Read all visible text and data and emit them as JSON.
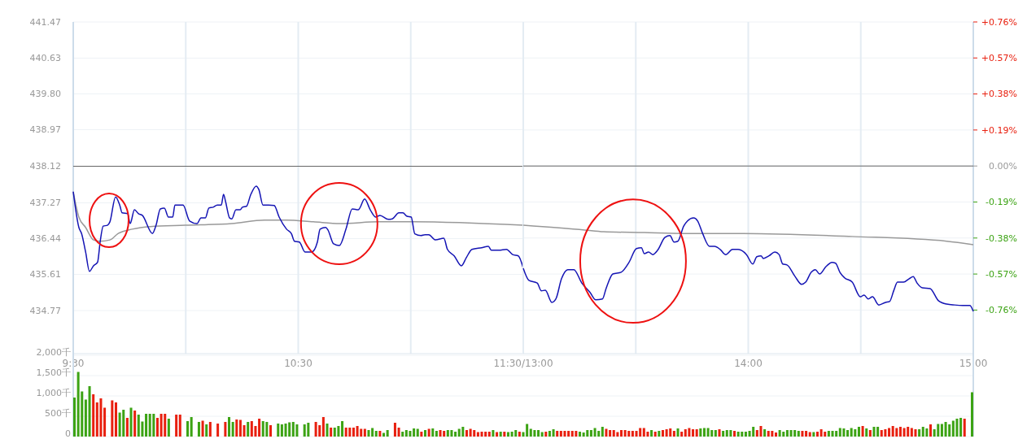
{
  "chart_data": [
    {
      "type": "line",
      "xlim": [
        9.5,
        11.5
      ],
      "xticks": [
        {
          "value": 9.5,
          "label": "9:30"
        },
        {
          "value": 10,
          "label": null
        },
        {
          "value": 10.5,
          "label": "10:30"
        },
        {
          "value": 11,
          "label": null
        },
        {
          "value": 11.5,
          "label": "11:30/13:00"
        }
      ],
      "ylim": [
        433.77,
        441.47
      ],
      "yticks": [
        {
          "value": 434.77,
          "label": "434.77"
        },
        {
          "value": 435.61,
          "label": "435.61"
        },
        {
          "value": 436.44,
          "label": "436.44"
        },
        {
          "value": 437.27,
          "label": "437.27"
        },
        {
          "value": 438.12,
          "label": "438.12"
        },
        {
          "value": 438.97,
          "label": "438.97"
        },
        {
          "value": 439.8,
          "label": "439.80"
        },
        {
          "value": 440.63,
          "label": "440.63"
        },
        {
          "value": 441.47,
          "label": "441.47"
        }
      ],
      "grid": true,
      "ref_lines": [
        {
          "axis": "y",
          "value": 438.12,
          "color": "#666666"
        }
      ],
      "series": [
        {
          "color": "#999999",
          "x": [
            9.5,
            9.525,
            9.555,
            9.59,
            9.617,
            9.663,
            9.7,
            9.762,
            9.843,
            9.998,
            10.205,
            10.35,
            10.448,
            10.567,
            10.687,
            10.857,
            11.005,
            11.5
          ],
          "values": [
            437.53,
            436.94,
            436.7,
            436.41,
            436.38,
            436.41,
            436.56,
            436.66,
            436.72,
            436.75,
            436.79,
            436.87,
            436.87,
            436.83,
            436.79,
            436.83,
            436.83,
            436.75
          ]
        },
        {
          "color": "#1414b4",
          "x": [
            9.5,
            9.525,
            9.537,
            9.555,
            9.572,
            9.59,
            9.608,
            9.62,
            9.633,
            9.652,
            9.663,
            9.688,
            9.707,
            9.717,
            9.742,
            9.753,
            9.772,
            9.79,
            9.807,
            9.852,
            9.868,
            9.887,
            9.905,
            9.923,
            9.942,
            9.952,
            9.988,
            10.017,
            10.05,
            10.068,
            10.087,
            10.103,
            10.122,
            10.14,
            10.158,
            10.168,
            10.177,
            10.195,
            10.205,
            10.223,
            10.242,
            10.252,
            10.27,
            10.288,
            10.313,
            10.325,
            10.343,
            10.368,
            10.393,
            10.415,
            10.448,
            10.47,
            10.483,
            10.505,
            10.53,
            10.56,
            10.585,
            10.597,
            10.622,
            10.632,
            10.657,
            10.683,
            10.712,
            10.74,
            10.767,
            10.795,
            10.82,
            10.845,
            10.863,
            10.9,
            10.918,
            10.947,
            10.965,
            10.983,
            11.002,
            11.018,
            11.045,
            11.063,
            11.08,
            11.11,
            11.147,
            11.163,
            11.193,
            11.225,
            11.247,
            11.272,
            11.315,
            11.345,
            11.358,
            11.392,
            11.425,
            11.453,
            11.478,
            11.5
          ],
          "values": [
            437.53,
            436.7,
            436.56,
            436.13,
            435.68,
            435.81,
            435.89,
            436.38,
            436.73,
            436.75,
            436.83,
            437.41,
            437.21,
            437.04,
            437.02,
            436.79,
            437.11,
            437.02,
            436.98,
            436.56,
            436.75,
            437.13,
            437.15,
            436.94,
            436.94,
            437.22,
            437.22,
            436.85,
            436.79,
            436.92,
            436.92,
            437.15,
            437.17,
            437.22,
            437.22,
            437.47,
            437.3,
            436.92,
            436.9,
            437.11,
            437.11,
            437.17,
            437.19,
            437.45,
            437.66,
            437.58,
            437.22,
            437.22,
            437.21,
            436.94,
            436.66,
            436.55,
            436.38,
            436.36,
            436.13,
            436.13,
            436.36,
            436.66,
            436.7,
            436.64,
            436.32,
            436.28,
            436.66,
            437.13,
            437.11,
            437.36,
            437.11,
            436.94,
            436.98,
            436.89,
            436.9,
            437.04,
            437.04,
            436.96,
            436.94,
            436.55,
            436.51,
            436.53,
            436.53,
            436.41,
            436.45,
            436.19,
            436.04,
            435.81,
            436.0,
            436.19,
            436.23,
            436.26,
            436.17,
            436.17,
            436.19,
            436.07,
            436.04,
            435.75
          ]
        }
      ]
    },
    {
      "type": "line",
      "tick_labels": "x",
      "xlim": [
        13,
        15
      ],
      "xticks": [
        {
          "value": 13,
          "label": null
        },
        {
          "value": 13.5,
          "label": null
        },
        {
          "value": 14,
          "label": "14:00"
        },
        {
          "value": 14.5,
          "label": null
        },
        {
          "value": 15,
          "label": "15:00"
        }
      ],
      "ylim": [
        433.77,
        441.47
      ],
      "y2lim": [
        -0.99,
        0.76
      ],
      "y2ticks": [
        {
          "value": -0.76,
          "label": "-0.76%"
        },
        {
          "value": -0.57,
          "label": "-0.57%"
        },
        {
          "value": -0.38,
          "label": "-0.38%"
        },
        {
          "value": -0.19,
          "label": "-0.19%"
        },
        {
          "value": 0,
          "label": "0.00%"
        },
        {
          "value": 0.19,
          "label": "+0.19%"
        },
        {
          "value": 0.38,
          "label": "+0.38%"
        },
        {
          "value": 0.57,
          "label": "+0.57%"
        },
        {
          "value": 0.76,
          "label": "+0.76%"
        }
      ],
      "grid": true,
      "ref_lines": [
        {
          "axis": "y2",
          "value": 0,
          "color": "#666666"
        }
      ],
      "series": [
        {
          "color": "#999999",
          "x": [
            13,
            13.273,
            13.357,
            13.538,
            13.708,
            13.977,
            14.462,
            14.882,
            15
          ],
          "values": [
            436.75,
            436.64,
            436.6,
            436.58,
            436.56,
            436.56,
            436.49,
            436.38,
            436.3
          ]
        },
        {
          "color": "#1414b4",
          "x": [
            13,
            13.025,
            13.062,
            13.08,
            13.098,
            13.127,
            13.145,
            13.17,
            13.198,
            13.225,
            13.26,
            13.297,
            13.322,
            13.352,
            13.368,
            13.398,
            13.435,
            13.47,
            13.503,
            13.525,
            13.538,
            13.557,
            13.575,
            13.597,
            13.63,
            13.652,
            13.67,
            13.687,
            13.713,
            13.73,
            13.757,
            13.775,
            13.797,
            13.828,
            13.85,
            13.875,
            13.9,
            13.93,
            13.955,
            13.992,
            14.02,
            14.038,
            14.057,
            14.067,
            14.092,
            14.118,
            14.137,
            14.153,
            14.172,
            14.208,
            14.237,
            14.255,
            14.28,
            14.298,
            14.317,
            14.345,
            14.372,
            14.388,
            14.407,
            14.428,
            14.462,
            14.498,
            14.515,
            14.533,
            14.552,
            14.58,
            14.61,
            14.628,
            14.647,
            14.663,
            14.69,
            14.715,
            14.733,
            14.75,
            14.773,
            14.808,
            14.845,
            14.882,
            14.917,
            14.953,
            14.985,
            15
          ],
          "values": [
            435.75,
            435.47,
            435.41,
            435.23,
            435.24,
            434.96,
            435.04,
            435.51,
            435.72,
            435.72,
            435.41,
            435.19,
            435.02,
            435.04,
            435.28,
            435.62,
            435.66,
            435.89,
            436.21,
            436.23,
            436.09,
            436.13,
            436.07,
            436.17,
            436.47,
            436.51,
            436.36,
            436.38,
            436.73,
            436.85,
            436.92,
            436.85,
            436.56,
            436.26,
            436.26,
            436.19,
            436.07,
            436.19,
            436.19,
            436.07,
            435.85,
            436.02,
            436.04,
            435.98,
            436.04,
            436.13,
            436.07,
            435.85,
            435.83,
            435.56,
            435.38,
            435.43,
            435.66,
            435.72,
            435.62,
            435.79,
            435.89,
            435.87,
            435.66,
            435.53,
            435.43,
            435.09,
            435.13,
            435.04,
            435.09,
            434.9,
            434.96,
            434.98,
            435.24,
            435.43,
            435.43,
            435.51,
            435.56,
            435.41,
            435.3,
            435.28,
            435.0,
            434.92,
            434.9,
            434.89,
            434.89,
            434.75
          ]
        }
      ]
    },
    {
      "type": "bar",
      "tick_labels": "y",
      "grid": "y",
      "ylim": [
        0,
        2000
      ],
      "yticks": [
        0,
        {
          "value": 500,
          "label": "500千"
        },
        {
          "value": 1000,
          "label": "1,000千"
        },
        {
          "value": 1500,
          "label": "1,500千"
        },
        {
          "value": 2000,
          "label": "2,000千"
        }
      ],
      "categories": [
        null,
        null,
        null,
        null,
        null,
        null,
        null,
        null,
        null,
        null,
        null,
        null,
        null,
        null,
        null,
        null,
        null,
        null,
        null,
        null,
        null,
        null,
        null,
        null,
        null,
        null,
        null,
        null,
        null,
        null,
        null,
        null,
        null,
        null,
        null,
        null,
        null,
        null,
        null,
        null,
        null,
        null,
        null,
        null,
        null,
        null,
        null,
        null,
        null,
        null,
        null,
        null,
        null,
        null,
        null,
        null,
        null,
        null,
        null,
        null,
        null,
        null,
        null,
        null,
        null,
        null,
        null,
        null,
        null,
        null,
        null,
        null,
        null,
        null,
        null,
        null,
        null,
        null,
        null,
        null,
        null,
        null,
        null,
        null,
        null,
        null,
        null,
        null,
        null,
        null,
        null,
        null,
        null,
        null,
        null,
        null,
        null,
        null,
        null,
        null,
        null,
        null,
        null,
        null,
        null,
        null,
        null,
        null,
        null,
        null,
        null,
        null,
        null,
        null,
        null,
        null,
        null,
        null,
        null,
        null,
        null,
        null,
        null,
        null,
        null,
        null,
        null,
        null,
        null,
        null,
        null,
        null,
        null,
        null,
        null,
        null,
        null,
        null,
        null,
        null,
        null,
        null,
        null,
        null,
        null,
        null,
        null,
        null,
        null,
        null,
        null,
        null,
        null,
        null,
        null,
        null,
        null,
        null,
        null,
        null,
        null,
        null,
        null,
        null,
        null,
        null,
        null,
        null,
        null,
        null,
        null,
        null,
        null,
        null,
        null,
        null,
        null,
        null,
        null,
        null,
        null,
        null,
        null,
        null,
        null,
        null,
        null,
        null,
        null,
        null,
        null,
        null,
        null,
        null,
        null,
        null,
        null,
        null,
        null,
        null,
        null,
        null,
        null,
        null,
        null,
        null,
        null,
        null,
        null,
        null,
        null,
        null,
        null,
        null,
        null,
        null,
        null,
        null,
        null,
        null,
        null,
        null,
        null,
        null,
        null,
        null,
        null,
        null,
        null,
        null,
        null,
        null,
        null,
        null,
        null,
        null,
        null,
        null,
        null
      ],
      "values": [
        960,
        1590,
        1110,
        910,
        1240,
        1040,
        840,
        940,
        710,
        null,
        890,
        840,
        590,
        660,
        460,
        710,
        640,
        540,
        370,
        560,
        560,
        560,
        460,
        560,
        560,
        440,
        null,
        540,
        540,
        null,
        380,
        480,
        null,
        360,
        390,
        300,
        360,
        null,
        320,
        null,
        360,
        480,
        360,
        420,
        410,
        280,
        360,
        380,
        260,
        440,
        380,
        360,
        280,
        null,
        320,
        300,
        320,
        350,
        360,
        300,
        null,
        300,
        340,
        null,
        360,
        280,
        480,
        320,
        220,
        220,
        260,
        380,
        220,
        220,
        220,
        260,
        190,
        190,
        160,
        210,
        140,
        140,
        90,
        160,
        null,
        340,
        220,
        120,
        160,
        140,
        200,
        190,
        120,
        160,
        190,
        200,
        140,
        160,
        140,
        160,
        160,
        120,
        190,
        240,
        160,
        190,
        160,
        110,
        120,
        120,
        120,
        160,
        110,
        120,
        120,
        110,
        120,
        160,
        120,
        110,
        310,
        190,
        160,
        160,
        110,
        120,
        140,
        180,
        140,
        140,
        140,
        140,
        140,
        140,
        120,
        100,
        160,
        160,
        210,
        140,
        240,
        190,
        160,
        160,
        110,
        160,
        160,
        140,
        140,
        140,
        210,
        210,
        120,
        160,
        120,
        140,
        160,
        180,
        200,
        140,
        200,
        120,
        180,
        210,
        180,
        180,
        200,
        210,
        210,
        160,
        160,
        180,
        140,
        160,
        160,
        140,
        120,
        120,
        120,
        140,
        240,
        160,
        260,
        180,
        140,
        140,
        100,
        160,
        120,
        160,
        160,
        160,
        140,
        140,
        140,
        110,
        110,
        120,
        180,
        120,
        140,
        140,
        140,
        210,
        200,
        160,
        210,
        180,
        240,
        260,
        200,
        160,
        240,
        240,
        160,
        180,
        210,
        260,
        210,
        240,
        210,
        240,
        210,
        180,
        180,
        240,
        200,
        300,
        180,
        310,
        310,
        360,
        300,
        390,
        440,
        460,
        440,
        null,
        1090
      ],
      "colors": [
        "#3ca314",
        "#3ca314",
        "#3ca314",
        "#3ca314",
        "#3ca314",
        "#e8200f",
        "#e8200f",
        "#e8200f",
        "#e8200f",
        null,
        "#e8200f",
        "#e8200f",
        "#3ca314",
        "#3ca314",
        "#e8200f",
        "#3ca314",
        "#e8200f",
        "#3ca314",
        "#3ca314",
        "#3ca314",
        "#3ca314",
        "#3ca314",
        "#e8200f",
        "#e8200f",
        "#e8200f",
        "#3ca314",
        null,
        "#e8200f",
        "#e8200f",
        null,
        "#3ca314",
        "#3ca314",
        null,
        "#3ca314",
        "#e8200f",
        "#3ca314",
        "#e8200f",
        null,
        "#e8200f",
        null,
        "#e8200f",
        "#3ca314",
        "#3ca314",
        "#e8200f",
        "#e8200f",
        "#e8200f",
        "#3ca314",
        "#e8200f",
        "#e8200f",
        "#e8200f",
        "#3ca314",
        "#3ca314",
        "#e8200f",
        null,
        "#3ca314",
        "#3ca314",
        "#3ca314",
        "#3ca314",
        "#3ca314",
        "#3ca314",
        null,
        "#3ca314",
        "#3ca314",
        null,
        "#e8200f",
        "#e8200f",
        "#e8200f",
        "#3ca314",
        "#e8200f",
        "#3ca314",
        "#3ca314",
        "#3ca314",
        "#e8200f",
        "#e8200f",
        "#e8200f",
        "#e8200f",
        "#e8200f",
        "#e8200f",
        "#3ca314",
        "#3ca314",
        "#3ca314",
        "#e8200f",
        "#3ca314",
        "#3ca314",
        null,
        "#e8200f",
        "#e8200f",
        "#3ca314",
        "#3ca314",
        "#3ca314",
        "#3ca314",
        "#3ca314",
        "#e8200f",
        "#3ca314",
        "#e8200f",
        "#3ca314",
        "#3ca314",
        "#e8200f",
        "#e8200f",
        "#3ca314",
        "#3ca314",
        "#3ca314",
        "#3ca314",
        "#3ca314",
        "#e8200f",
        "#e8200f",
        "#e8200f",
        "#e8200f",
        "#e8200f",
        "#e8200f",
        "#e8200f",
        "#3ca314",
        "#e8200f",
        "#3ca314",
        "#e8200f",
        "#3ca314",
        "#3ca314",
        "#3ca314",
        "#e8200f",
        "#3ca314",
        "#3ca314",
        "#3ca314",
        "#3ca314",
        "#3ca314",
        "#3ca314",
        "#e8200f",
        "#3ca314",
        "#3ca314",
        "#e8200f",
        "#e8200f",
        "#e8200f",
        "#e8200f",
        "#e8200f",
        "#e8200f",
        "#3ca314",
        "#3ca314",
        "#3ca314",
        "#3ca314",
        "#3ca314",
        "#3ca314",
        "#3ca314",
        "#e8200f",
        "#e8200f",
        "#e8200f",
        "#e8200f",
        "#e8200f",
        "#e8200f",
        "#e8200f",
        "#e8200f",
        "#e8200f",
        "#e8200f",
        "#e8200f",
        "#e8200f",
        "#3ca314",
        "#e8200f",
        "#3ca314",
        "#e8200f",
        "#e8200f",
        "#e8200f",
        "#e8200f",
        "#3ca314",
        "#e8200f",
        "#e8200f",
        "#e8200f",
        "#e8200f",
        "#e8200f",
        "#3ca314",
        "#3ca314",
        "#3ca314",
        "#3ca314",
        "#3ca314",
        "#e8200f",
        "#3ca314",
        "#3ca314",
        "#3ca314",
        "#e8200f",
        "#3ca314",
        "#3ca314",
        "#3ca314",
        "#3ca314",
        "#3ca314",
        "#e8200f",
        "#e8200f",
        "#3ca314",
        "#e8200f",
        "#e8200f",
        "#e8200f",
        "#3ca314",
        "#3ca314",
        "#3ca314",
        "#3ca314",
        "#3ca314",
        "#3ca314",
        "#e8200f",
        "#e8200f",
        "#e8200f",
        "#3ca314",
        "#e8200f",
        "#e8200f",
        "#e8200f",
        "#3ca314",
        "#3ca314",
        "#3ca314",
        "#3ca314",
        "#3ca314",
        "#3ca314",
        "#3ca314",
        "#3ca314",
        "#3ca314",
        "#e8200f",
        "#3ca314",
        "#e8200f",
        "#3ca314",
        "#3ca314",
        "#e8200f",
        "#e8200f",
        "#e8200f",
        "#e8200f",
        "#e8200f",
        "#e8200f",
        "#e8200f",
        "#e8200f",
        "#e8200f",
        "#e8200f",
        "#3ca314",
        "#3ca314",
        "#3ca314",
        "#e8200f",
        "#3ca314",
        "#3ca314",
        "#3ca314",
        "#3ca314",
        "#3ca314",
        "#3ca314",
        "#3ca314",
        "#3ca314",
        "#e8200f",
        null,
        "#3ca314"
      ]
    }
  ]
}
